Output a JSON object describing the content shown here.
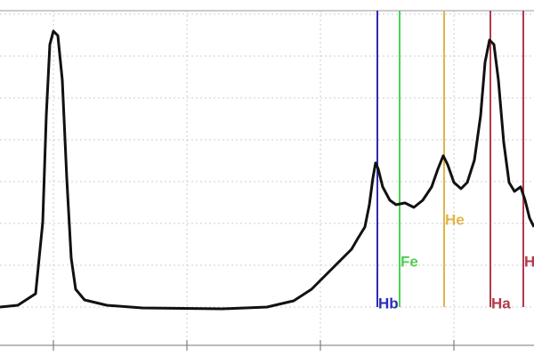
{
  "chart_data": {
    "type": "line",
    "x": [
      0,
      20,
      40,
      48,
      52,
      56,
      60,
      65,
      70,
      75,
      80,
      85,
      95,
      120,
      160,
      250,
      300,
      330,
      350,
      365,
      375,
      385,
      395,
      402,
      410,
      415,
      419,
      422,
      425,
      430,
      438,
      445,
      455,
      465,
      475,
      485,
      492,
      498,
      503,
      510,
      518,
      525,
      533,
      540,
      545,
      550,
      555,
      560,
      566,
      572,
      578,
      585,
      590,
      595,
      600
    ],
    "series": [
      {
        "color": "#111111",
        "values": [
          47,
          49,
          62,
          142,
          262,
          342,
          357,
          352,
          302,
          192,
          102,
          67,
          55,
          49,
          46,
          45,
          47,
          54,
          67,
          82,
          92,
          102,
          112,
          124,
          137,
          162,
          192,
          209,
          202,
          182,
          167,
          162,
          164,
          159,
          167,
          182,
          202,
          217,
          207,
          187,
          180,
          187,
          212,
          262,
          322,
          347,
          342,
          302,
          232,
          187,
          177,
          182,
          167,
          147,
          137
        ]
      }
    ],
    "xlim": [
      0,
      600
    ],
    "ylim": [
      0,
      392
    ],
    "xticks": [
      60,
      210,
      360,
      510
    ],
    "yticks": [
      47,
      94,
      141,
      188,
      235,
      282,
      329,
      376
    ],
    "grid": true,
    "annotations": [
      {
        "label": "Hb",
        "x": 424,
        "color": "#2b2bb8"
      },
      {
        "label": "Fe",
        "x": 449,
        "color": "#4fd04f"
      },
      {
        "label": "He",
        "x": 499,
        "color": "#e3b448"
      },
      {
        "label": "Ha",
        "x": 551,
        "color": "#b03a4a"
      },
      {
        "label": "H",
        "x": 588,
        "color": "#b03a4a"
      }
    ]
  }
}
